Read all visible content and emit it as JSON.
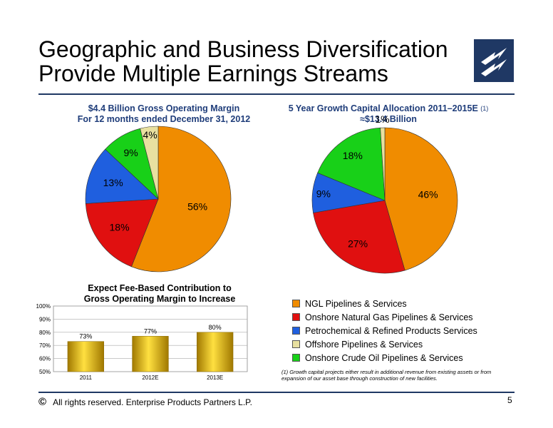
{
  "header": {
    "title_line1": "Geographic and Business Diversification",
    "title_line2": "Provide Multiple Earnings Streams"
  },
  "colors": {
    "ngl": "#f08c00",
    "onshore_gas": "#e01010",
    "petrochem": "#1f5fdf",
    "offshore": "#e8e0a0",
    "crude": "#18d018",
    "bar_gold": "#e0b000",
    "subtitle": "#1f3d7a",
    "rule": "#1f3864"
  },
  "chart_data": [
    {
      "type": "pie",
      "title_line1": "$4.4 Billion Gross Operating Margin",
      "title_line2": "For 12 months ended December 31, 2012",
      "slices": [
        {
          "name": "NGL Pipelines & Services",
          "value": 56,
          "label": "56%"
        },
        {
          "name": "Onshore Natural Gas Pipelines & Services",
          "value": 18,
          "label": "18%"
        },
        {
          "name": "Petrochemical & Refined Products Services",
          "value": 13,
          "label": "13%"
        },
        {
          "name": "Onshore Crude Oil Pipelines & Services",
          "value": 9,
          "label": "9%"
        },
        {
          "name": "Offshore Pipelines & Services",
          "value": 4,
          "label": "4%"
        }
      ]
    },
    {
      "type": "pie",
      "title_line1": "5 Year Growth Capital Allocation 2011–2015E",
      "title_sup": "(1)",
      "title_line2": "≈$13.4 Billion",
      "slices": [
        {
          "name": "NGL Pipelines & Services",
          "value": 46,
          "label": "46%"
        },
        {
          "name": "Onshore Natural Gas Pipelines & Services",
          "value": 27,
          "label": "27%"
        },
        {
          "name": "Petrochemical & Refined Products Services",
          "value": 9,
          "label": "9%"
        },
        {
          "name": "Onshore Crude Oil Pipelines & Services",
          "value": 18,
          "label": "18%"
        },
        {
          "name": "Offshore Pipelines & Services",
          "value": 1,
          "label": "1%"
        }
      ]
    },
    {
      "type": "bar",
      "title_line1": "Expect Fee-Based Contribution to",
      "title_line2": "Gross Operating Margin to Increase",
      "categories": [
        "2011",
        "2012E",
        "2013E"
      ],
      "values": [
        73,
        77,
        80
      ],
      "value_labels": [
        "73%",
        "77%",
        "80%"
      ],
      "ylim": [
        50,
        100
      ],
      "yticks": [
        "50%",
        "60%",
        "70%",
        "80%",
        "90%",
        "100%"
      ]
    }
  ],
  "legend": [
    {
      "label": "NGL Pipelines & Services",
      "color": "#f08c00"
    },
    {
      "label": "Onshore Natural Gas Pipelines & Services",
      "color": "#e01010"
    },
    {
      "label": "Petrochemical & Refined Products Services",
      "color": "#1f5fdf"
    },
    {
      "label": "Offshore Pipelines & Services",
      "color": "#e8e0a0"
    },
    {
      "label": "Onshore Crude Oil Pipelines & Services",
      "color": "#18d018"
    }
  ],
  "footnote": "(1)  Growth capital projects either result in additional revenue from existing assets or from expansion of our asset base through construction of new facilities.",
  "footer": {
    "copyright_symbol": "©",
    "copyright_text": "All rights reserved. Enterprise Products Partners L.P.",
    "page_number": "5"
  }
}
